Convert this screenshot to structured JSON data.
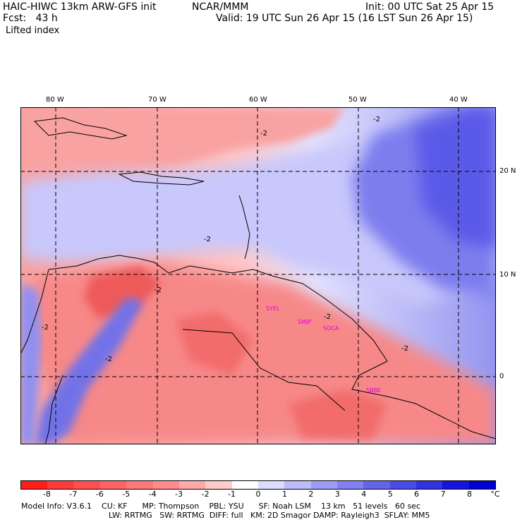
{
  "header": {
    "model_line": "HAIC-HIWC 13km ARW-GFS init",
    "org": "NCAR/MMM",
    "init": "Init: 00 UTC Sat 25 Apr 15",
    "fcst": "Fcst:   43 h",
    "valid": "Valid: 19 UTC Sun 26 Apr 15 (16 LST Sun 26 Apr 15)",
    "field": "Lifted index"
  },
  "axes": {
    "lon_labels": [
      "80 W",
      "70 W",
      "60 W",
      "50 W",
      "40 W"
    ],
    "lat_labels": [
      "20 N",
      "10 N",
      "0"
    ]
  },
  "stations": [
    "SYEL",
    "SMJP",
    "SOCA",
    "SBBE"
  ],
  "contour_labels": [
    "-2",
    "-2",
    "-2",
    "-2",
    "-2",
    "-2",
    "-2",
    "-2"
  ],
  "colorbar": {
    "labels": [
      "-8",
      "-7",
      "-6",
      "-5",
      "-4",
      "-3",
      "-2",
      "-1",
      "0",
      "1",
      "2",
      "3",
      "4",
      "5",
      "6",
      "7",
      "8"
    ],
    "unit": "°C",
    "colors": [
      "#ff1e1e",
      "#ff3c3c",
      "#ff5050",
      "#ff6464",
      "#ff7878",
      "#ff8c8c",
      "#ffaaaa",
      "#ffcaca",
      "#ffffff",
      "#dcdcff",
      "#bcbcfa",
      "#9c9cf4",
      "#8080ee",
      "#6464ea",
      "#4a4ae6",
      "#3232e2",
      "#1414dc",
      "#0000d2"
    ]
  },
  "model_info": {
    "line1": "Model Info: V3.6.1    CU: KF      MP: Thompson    PBL: YSU      SF: Noah LSM    13 km   51 levels   60 sec",
    "line2": "LW: RRTMG   SW: RRTMG  DIFF: full   KM: 2D Smagor DAMP: Rayleigh3  SFLAY: MM5"
  }
}
